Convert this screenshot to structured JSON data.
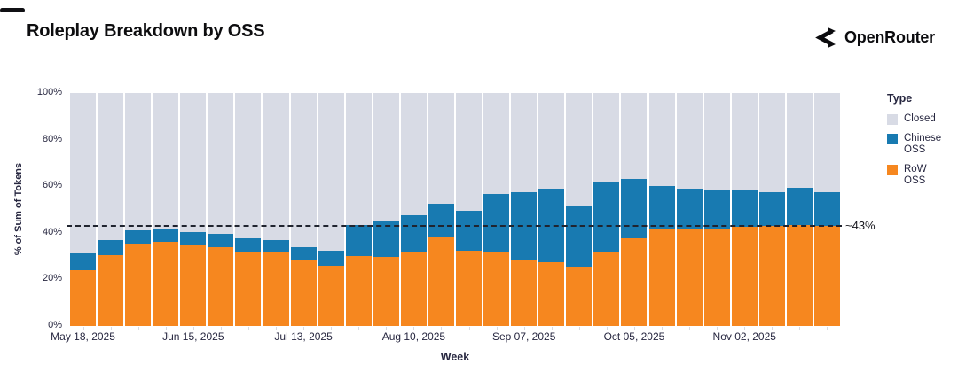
{
  "header": {
    "title": "Roleplay Breakdown by OSS",
    "brand": "OpenRouter"
  },
  "chart_data": {
    "type": "bar",
    "stacked": true,
    "title": "Roleplay Breakdown by OSS",
    "xlabel": "Week",
    "ylabel": "% of Sum of Tokens",
    "ylim": [
      0,
      100
    ],
    "y_ticks": [
      "0%",
      "20%",
      "40%",
      "60%",
      "80%",
      "100%"
    ],
    "x": [
      "May 18, 2025",
      "May 25, 2025",
      "Jun 01, 2025",
      "Jun 08, 2025",
      "Jun 15, 2025",
      "Jun 22, 2025",
      "Jun 29, 2025",
      "Jul 06, 2025",
      "Jul 13, 2025",
      "Jul 20, 2025",
      "Jul 27, 2025",
      "Aug 03, 2025",
      "Aug 10, 2025",
      "Aug 17, 2025",
      "Aug 24, 2025",
      "Aug 31, 2025",
      "Sep 07, 2025",
      "Sep 14, 2025",
      "Sep 21, 2025",
      "Sep 28, 2025",
      "Oct 05, 2025",
      "Oct 12, 2025",
      "Oct 19, 2025",
      "Oct 26, 2025",
      "Nov 02, 2025",
      "Nov 09, 2025",
      "Nov 16, 2025",
      "Nov 23, 2025"
    ],
    "x_tick_label_indices": [
      0,
      4,
      8,
      12,
      16,
      20,
      24
    ],
    "x_tick_labels_shown": [
      "May 18, 2025",
      "Jun 15, 2025",
      "Jul 13, 2025",
      "Aug 10, 2025",
      "Sep 07, 2025",
      "Oct 05, 2025",
      "Nov 02, 2025"
    ],
    "series": [
      {
        "name": "RoW OSS",
        "color": "#F6871F",
        "values": [
          24,
          30.5,
          35.5,
          36,
          34.5,
          34,
          31.5,
          31.5,
          28,
          26,
          30,
          29.5,
          31.5,
          38,
          32.5,
          32,
          28.5,
          27.5,
          25,
          32,
          37.5,
          41.5,
          42,
          42,
          42.5,
          43,
          43.5,
          43
        ]
      },
      {
        "name": "Chinese OSS",
        "color": "#187AB1",
        "values": [
          7,
          6.5,
          5.5,
          5.5,
          6,
          5.5,
          6,
          5.5,
          6,
          6.5,
          13.5,
          15.5,
          16,
          14.5,
          17,
          24.5,
          29,
          31.5,
          26.5,
          30,
          25.5,
          18.5,
          17,
          16,
          15.5,
          14.5,
          16,
          14.5
        ]
      },
      {
        "name": "Closed",
        "color": "#D8DBE5",
        "values": [
          69,
          63,
          59,
          58.5,
          59.5,
          60.5,
          62.5,
          63,
          66,
          67.5,
          56.5,
          55,
          52.5,
          47.5,
          50.5,
          43.5,
          42.5,
          41,
          48.5,
          38,
          37,
          40,
          41,
          42,
          42,
          42.5,
          40.5,
          42.5
        ]
      }
    ],
    "legend": {
      "title": "Type",
      "position": "right",
      "items": [
        "Closed",
        "Chinese OSS",
        "RoW OSS"
      ]
    },
    "reference_line": {
      "value": 43,
      "label": "~43%",
      "style": "dashed",
      "color": "#20242f"
    },
    "grid": false
  }
}
